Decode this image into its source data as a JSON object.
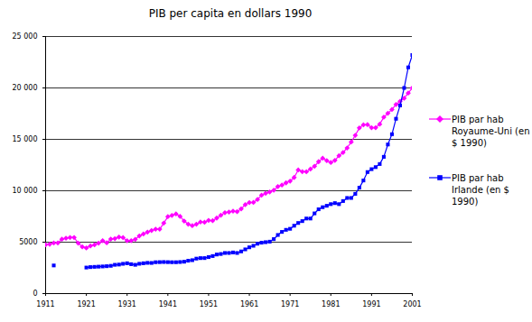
{
  "chart_data": {
    "type": "line",
    "title": "PIB per capita en dollars 1990",
    "x": [
      1911,
      1912,
      1913,
      1914,
      1915,
      1916,
      1917,
      1918,
      1919,
      1920,
      1921,
      1922,
      1923,
      1924,
      1925,
      1926,
      1927,
      1928,
      1929,
      1930,
      1931,
      1932,
      1933,
      1934,
      1935,
      1936,
      1937,
      1938,
      1939,
      1940,
      1941,
      1942,
      1943,
      1944,
      1945,
      1946,
      1947,
      1948,
      1949,
      1950,
      1951,
      1952,
      1953,
      1954,
      1955,
      1956,
      1957,
      1958,
      1959,
      1960,
      1961,
      1962,
      1963,
      1964,
      1965,
      1966,
      1967,
      1968,
      1969,
      1970,
      1971,
      1972,
      1973,
      1974,
      1975,
      1976,
      1977,
      1978,
      1979,
      1980,
      1981,
      1982,
      1983,
      1984,
      1985,
      1986,
      1987,
      1988,
      1989,
      1990,
      1991,
      1992,
      1993,
      1994,
      1995,
      1996,
      1997,
      1998,
      1999,
      2000,
      2001
    ],
    "series": [
      {
        "name": "PIB par hab Royaume-Uni (en $ 1990)",
        "color": "#ff00ff",
        "marker": "diamond",
        "values": [
          4750,
          4800,
          4921,
          4927,
          5288,
          5390,
          5453,
          5459,
          4906,
          4548,
          4439,
          4637,
          4746,
          4902,
          5144,
          4936,
          5301,
          5349,
          5503,
          5441,
          5138,
          5148,
          5277,
          5608,
          5797,
          5983,
          6132,
          6266,
          6262,
          6856,
          7482,
          7604,
          7745,
          7509,
          7056,
          6746,
          6604,
          6746,
          6956,
          6939,
          7123,
          7091,
          7346,
          7619,
          7868,
          7929,
          8017,
          7966,
          8240,
          8645,
          8857,
          8865,
          9149,
          9568,
          9752,
          9885,
          10049,
          10410,
          10552,
          10767,
          10941,
          11294,
          12025,
          11859,
          11847,
          12115,
          12384,
          12828,
          13167,
          12931,
          12747,
          12955,
          13405,
          13720,
          14165,
          14742,
          15393,
          16110,
          16414,
          16430,
          16136,
          16133,
          16477,
          17152,
          17533,
          17903,
          18398,
          18700,
          19000,
          19500,
          20000
        ]
      },
      {
        "name": "PIB par hab Irlande (en $ 1990)",
        "color": "#0000ff",
        "marker": "square",
        "values": [
          null,
          null,
          2736,
          null,
          null,
          null,
          null,
          null,
          null,
          null,
          2533,
          2577,
          2600,
          2620,
          2640,
          2665,
          2700,
          2800,
          2824,
          2897,
          2950,
          2860,
          2800,
          2900,
          2950,
          2990,
          2980,
          3050,
          3060,
          3070,
          3060,
          3050,
          3050,
          3070,
          3100,
          3200,
          3250,
          3400,
          3450,
          3453,
          3550,
          3650,
          3800,
          3850,
          3950,
          3950,
          4000,
          3950,
          4100,
          4300,
          4500,
          4650,
          4850,
          4950,
          5000,
          5050,
          5300,
          5700,
          6000,
          6200,
          6300,
          6600,
          6867,
          7050,
          7300,
          7300,
          7800,
          8200,
          8400,
          8541,
          8700,
          8800,
          8700,
          9000,
          9300,
          9300,
          9700,
          10300,
          11000,
          11818,
          12100,
          12300,
          12600,
          13300,
          14500,
          15500,
          17000,
          18300,
          20000,
          22000,
          23200
        ]
      }
    ],
    "xlim": [
      1911,
      2001
    ],
    "xticks": [
      1911,
      1921,
      1931,
      1941,
      1951,
      1961,
      1971,
      1981,
      1991,
      2001
    ],
    "ylim": [
      0,
      25000
    ],
    "yticks": [
      0,
      5000,
      {
        "value": 10000,
        "label": "10 000"
      },
      {
        "value": 15000,
        "label": "15 000"
      },
      {
        "value": 20000,
        "label": "20 000"
      },
      {
        "value": 25000,
        "label": "25 000"
      }
    ],
    "grid": true,
    "legend": "right"
  }
}
